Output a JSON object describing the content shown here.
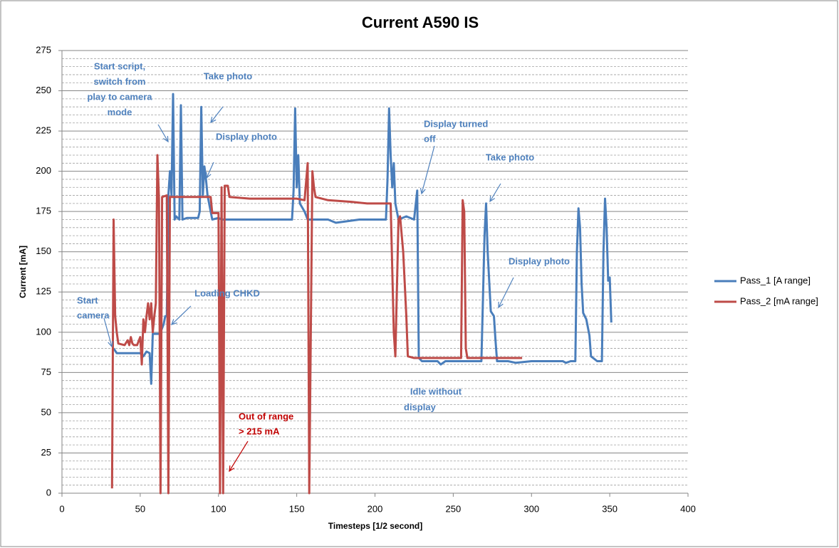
{
  "chart_data": {
    "type": "line",
    "title": "Current A590 IS",
    "x_label": "Timesteps [1/2 second]",
    "y_label": "Current [mA]",
    "xlim": [
      0,
      400
    ],
    "xticks": [
      0,
      50,
      100,
      150,
      200,
      250,
      300,
      350,
      400
    ],
    "ylim": [
      0,
      275
    ],
    "yticks": [
      0,
      25,
      50,
      75,
      100,
      125,
      150,
      175,
      200,
      225,
      250,
      275
    ],
    "y_minor_ticks": [
      5,
      10,
      15,
      20,
      30,
      35,
      40,
      45,
      55,
      60,
      65,
      70,
      80,
      85,
      90,
      95,
      105,
      110,
      115,
      120,
      130,
      135,
      140,
      145,
      155,
      160,
      165,
      170,
      180,
      185,
      190,
      195,
      205,
      210,
      215,
      220,
      230,
      235,
      240,
      245,
      255,
      260,
      265,
      270
    ],
    "grid": true,
    "legend": "right",
    "series": [
      {
        "name": "Pass_1 [A range]",
        "color": "#4a7ebb",
        "x": [
          33,
          35,
          50,
          52,
          54,
          56,
          57,
          58,
          62,
          63,
          65,
          66,
          67,
          68,
          69,
          70,
          71,
          72,
          73,
          75,
          76,
          77,
          80,
          87,
          88,
          89,
          90,
          91,
          92,
          93,
          95,
          96,
          100,
          102,
          147,
          148,
          149,
          150,
          151,
          152,
          155,
          157,
          170,
          175,
          190,
          207,
          208,
          209,
          210,
          211,
          212,
          213,
          214,
          215,
          220,
          225,
          227,
          228,
          230,
          240,
          242,
          245,
          260,
          268,
          270,
          271,
          272,
          274,
          276,
          277,
          278,
          285,
          290,
          300,
          320,
          322,
          325,
          328,
          329,
          330,
          331,
          332,
          333,
          335,
          337,
          338,
          342,
          345,
          346,
          347,
          348,
          349,
          350,
          351
        ],
        "values": [
          90,
          87,
          87,
          85,
          88,
          87,
          68,
          99,
          99,
          100,
          105,
          110,
          110,
          185,
          200,
          185,
          248,
          170,
          172,
          170,
          241,
          170,
          171,
          171,
          175,
          240,
          185,
          203,
          195,
          185,
          175,
          170,
          171,
          170,
          170,
          188,
          239,
          190,
          210,
          180,
          175,
          170,
          170,
          168,
          170,
          170,
          195,
          239,
          210,
          190,
          205,
          180,
          175,
          170,
          172,
          170,
          188,
          84,
          82,
          82,
          80,
          82,
          82,
          82,
          160,
          180,
          150,
          113,
          110,
          95,
          82,
          82,
          81,
          82,
          82,
          81,
          82,
          82,
          150,
          177,
          165,
          130,
          112,
          108,
          98,
          85,
          82,
          82,
          150,
          183,
          165,
          132,
          134,
          106
        ]
      },
      {
        "name": "Pass_2 [mA range]",
        "color": "#be4b48",
        "x": [
          32,
          33,
          34,
          35,
          36,
          40,
          42,
          43,
          44,
          45,
          46,
          48,
          50,
          51,
          52,
          53,
          54,
          55,
          56,
          57,
          58,
          59,
          60,
          61,
          62,
          63,
          64,
          67,
          68,
          69,
          90,
          95,
          96,
          100,
          101,
          102,
          103,
          104,
          106,
          107,
          120,
          150,
          155,
          157,
          158,
          160,
          161,
          162,
          170,
          185,
          195,
          205,
          210,
          212,
          213,
          215,
          216,
          218,
          220,
          221,
          225,
          240,
          255,
          256,
          257,
          258,
          259,
          270,
          280,
          294
        ],
        "values": [
          3,
          170,
          110,
          100,
          93,
          92,
          95,
          92,
          97,
          93,
          92,
          92,
          97,
          80,
          108,
          100,
          110,
          118,
          108,
          118,
          100,
          110,
          118,
          210,
          183,
          0,
          184,
          185,
          0,
          184,
          184,
          184,
          174,
          174,
          0,
          190,
          0,
          191,
          191,
          184,
          183,
          183,
          182,
          205,
          0,
          200,
          190,
          184,
          182,
          181,
          180,
          180,
          180,
          100,
          85,
          170,
          172,
          150,
          110,
          85,
          84,
          84,
          84,
          182,
          175,
          90,
          84,
          84,
          84,
          84
        ]
      }
    ],
    "annotations": [
      {
        "lines": [
          "Start script,",
          "switch from",
          "play to camera",
          "mode"
        ],
        "color": "#4f81bd"
      },
      {
        "lines": [
          "Take photo"
        ],
        "color": "#4f81bd"
      },
      {
        "lines": [
          "Display photo"
        ],
        "color": "#4f81bd"
      },
      {
        "lines": [
          "Start",
          "camera"
        ],
        "color": "#4f81bd"
      },
      {
        "lines": [
          "Loading CHKD"
        ],
        "color": "#4f81bd"
      },
      {
        "lines": [
          "Display turned",
          "off"
        ],
        "color": "#4f81bd"
      },
      {
        "lines": [
          "Take photo"
        ],
        "color": "#4f81bd"
      },
      {
        "lines": [
          "Display photo"
        ],
        "color": "#4f81bd"
      },
      {
        "lines": [
          "Idle without",
          "display"
        ],
        "color": "#4f81bd"
      },
      {
        "lines": [
          "Out of range",
          "> 215 mA"
        ],
        "color": "#c00000"
      }
    ]
  }
}
